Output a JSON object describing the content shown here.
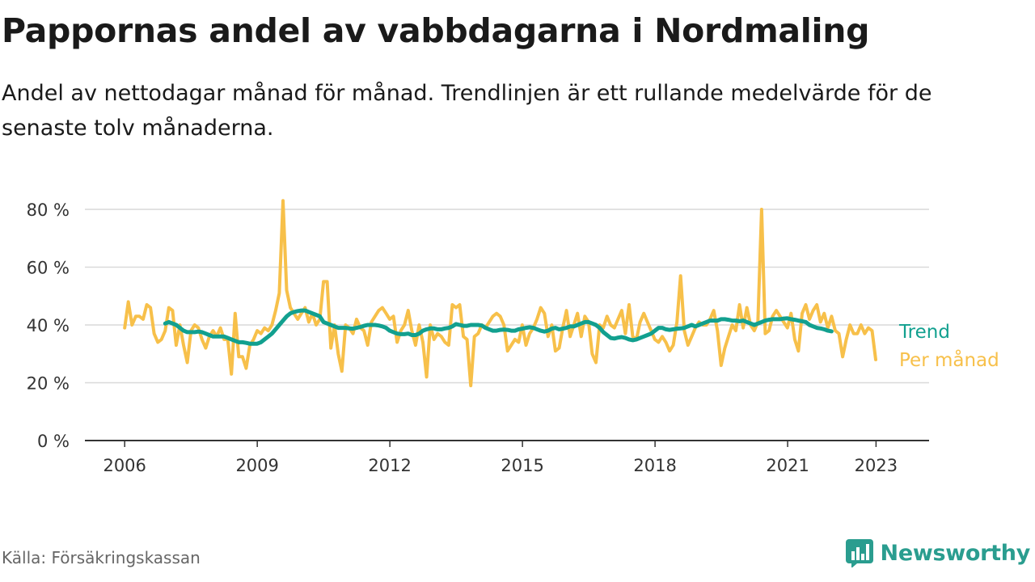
{
  "header": {
    "title": "Pappornas andel av vabbdagarna i Nordmaling",
    "subtitle": "Andel av nettodagar månad för månad. Trendlinjen är ett rullande medelvärde för de senaste tolv månaderna."
  },
  "footer": {
    "source": "Källa: Försäkringskassan",
    "brand": "Newsworthy"
  },
  "icons": {
    "brand_logo": "newsworthy-logo-icon"
  },
  "colors": {
    "monthly": "#f7c04a",
    "trend": "#12a08f",
    "grid": "#d9d9d9",
    "axis": "#333333",
    "brand": "#2a9d8f"
  },
  "chart_data": {
    "type": "line",
    "title": "Pappornas andel av vabbdagarna i Nordmaling",
    "subtitle": "Andel av nettodagar månad för månad. Trendlinjen är ett rullande medelvärde för de senaste tolv månaderna.",
    "xlabel": "",
    "ylabel": "",
    "x_unit": "year",
    "y_unit": "%",
    "xlim": [
      2005.1,
      2024.2
    ],
    "ylim": [
      0,
      80
    ],
    "x_ticks": [
      2006,
      2009,
      2012,
      2015,
      2018,
      2021,
      2023
    ],
    "x_tick_labels": [
      "2006",
      "2009",
      "2012",
      "2015",
      "2018",
      "2021",
      "2023"
    ],
    "y_ticks": [
      0,
      20,
      40,
      60,
      80
    ],
    "y_tick_labels": [
      "0 %",
      "20 %",
      "40 %",
      "60 %",
      "80 %"
    ],
    "grid": "horizontal",
    "legend": "inline labels at the right end of each line",
    "series": [
      {
        "name": "Per månad",
        "color": "#f7c04a",
        "x_start": 2006.0,
        "step": 0.0833,
        "values": [
          39,
          48,
          40,
          43,
          43,
          42,
          47,
          46,
          37,
          34,
          35,
          38,
          46,
          45,
          33,
          40,
          33,
          27,
          38,
          40,
          39,
          35,
          32,
          36,
          38,
          36,
          39,
          35,
          35,
          23,
          44,
          29,
          29,
          25,
          33,
          35,
          38,
          37,
          39,
          38,
          40,
          45,
          51,
          83,
          52,
          46,
          44,
          42,
          44,
          46,
          41,
          44,
          40,
          42,
          55,
          55,
          32,
          40,
          30,
          24,
          40,
          39,
          37,
          42,
          39,
          38,
          33,
          41,
          43,
          45,
          46,
          44,
          42,
          43,
          34,
          38,
          40,
          45,
          38,
          33,
          40,
          34,
          22,
          40,
          35,
          37,
          36,
          34,
          33,
          47,
          46,
          47,
          36,
          35,
          19,
          36,
          37,
          40,
          39,
          41,
          43,
          44,
          43,
          40,
          31,
          33,
          35,
          34,
          40,
          33,
          37,
          39,
          42,
          46,
          44,
          36,
          40,
          31,
          32,
          39,
          45,
          36,
          40,
          44,
          36,
          43,
          41,
          30,
          27,
          40,
          39,
          43,
          40,
          39,
          42,
          45,
          37,
          47,
          36,
          35,
          41,
          44,
          41,
          38,
          35,
          34,
          36,
          34,
          31,
          33,
          41,
          57,
          38,
          33,
          36,
          39,
          41,
          40,
          40,
          42,
          45,
          38,
          26,
          32,
          36,
          40,
          38,
          47,
          39,
          46,
          40,
          38,
          41,
          80,
          37,
          38,
          43,
          45,
          43,
          41,
          39,
          44,
          35,
          31,
          44,
          47,
          42,
          45,
          47,
          41,
          44,
          39,
          43,
          38,
          37,
          29,
          35,
          40,
          37,
          37,
          40,
          37,
          39,
          38,
          28
        ]
      },
      {
        "name": "Trend",
        "color": "#12a08f",
        "x_start": 2006.9167,
        "step": 0.0833,
        "values": [
          40.5,
          41,
          40.5,
          40,
          39,
          38,
          37.5,
          37.5,
          37.5,
          37.7,
          37.5,
          37,
          36.5,
          36,
          36,
          36,
          36,
          35.5,
          35,
          34.5,
          34,
          34,
          33.8,
          33.5,
          33.5,
          33.5,
          34,
          35,
          36,
          37,
          38.5,
          40,
          41.5,
          43,
          44,
          44.5,
          44.8,
          45,
          45,
          44.5,
          44,
          43.5,
          43,
          41,
          40.5,
          40,
          39.5,
          39,
          39,
          39,
          38.8,
          38.7,
          39,
          39.3,
          39.7,
          40,
          40,
          40,
          39.8,
          39.5,
          39,
          38,
          37.5,
          37,
          36.8,
          36.8,
          37,
          36.5,
          36.5,
          37,
          38,
          38.5,
          38.8,
          38.8,
          38.5,
          38.5,
          38.8,
          39,
          39.5,
          40.3,
          40,
          39.7,
          39.7,
          40,
          40,
          40,
          39.8,
          39,
          38.5,
          38,
          38,
          38.3,
          38.4,
          38.3,
          38,
          38,
          38.5,
          38.7,
          39,
          39.2,
          39,
          38.5,
          38,
          37.7,
          38,
          38.7,
          39,
          38.5,
          38.7,
          39,
          39.5,
          39.5,
          40,
          40.5,
          41,
          41,
          40.5,
          40,
          39,
          37.5,
          36.5,
          35.5,
          35.3,
          35.6,
          35.8,
          35.5,
          35,
          34.7,
          35,
          35.5,
          36,
          36.5,
          37,
          38,
          39,
          39,
          38.5,
          38.3,
          38.5,
          38.7,
          38.8,
          39,
          39.5,
          40,
          39.5,
          40,
          40.5,
          41,
          41.5,
          41.5,
          41.5,
          42,
          42,
          41.8,
          41.5,
          41.5,
          41.3,
          41.5,
          41,
          40.5,
          40,
          40.5,
          41,
          41.5,
          41.8,
          42,
          42,
          42,
          42.2,
          42.3,
          42,
          41.8,
          41.5,
          41.3,
          41,
          40,
          39.5,
          39,
          38.8,
          38.5,
          38,
          37.8
        ]
      }
    ]
  }
}
